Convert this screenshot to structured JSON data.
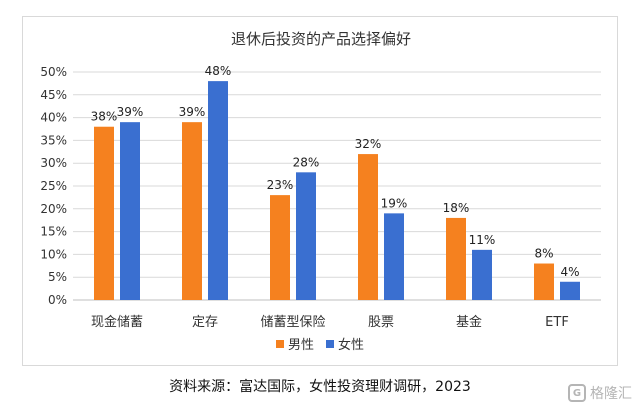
{
  "chart_data": {
    "type": "bar",
    "title": "退休后投资的产品选择偏好",
    "categories": [
      "现金储蓄",
      "定存",
      "储蓄型保险",
      "股票",
      "基金",
      "ETF"
    ],
    "series": [
      {
        "name": "男性",
        "values": [
          38,
          39,
          23,
          32,
          18,
          8
        ],
        "color": "#f5811f"
      },
      {
        "name": "女性",
        "values": [
          39,
          48,
          28,
          19,
          11,
          4
        ],
        "color": "#3a6fd0"
      }
    ],
    "y_ticks": [
      "0%",
      "5%",
      "10%",
      "15%",
      "20%",
      "25%",
      "30%",
      "35%",
      "40%",
      "45%",
      "50%"
    ],
    "ylim": [
      0,
      50
    ],
    "value_suffix": "%",
    "grid": true,
    "legend_position": "bottom"
  },
  "source": "资料来源：富达国际，女性投资理财调研，2023",
  "watermark": {
    "text": "格隆汇",
    "logo_glyph": "G"
  }
}
